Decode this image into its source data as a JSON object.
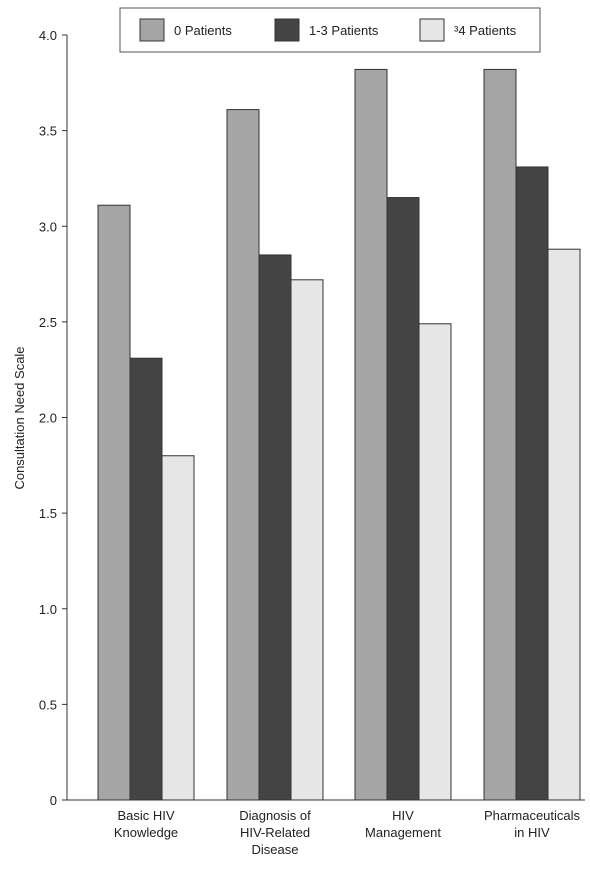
{
  "chart_data": {
    "type": "bar",
    "title": "",
    "xlabel": "",
    "ylabel": "Consultation Need Scale",
    "ylim": [
      0,
      4.0
    ],
    "yticks": [
      "0",
      "0.5",
      "1.0",
      "1.5",
      "2.0",
      "2.5",
      "3.0",
      "3.5",
      "4.0"
    ],
    "ytick_values": [
      0,
      0.5,
      1.0,
      1.5,
      2.0,
      2.5,
      3.0,
      3.5,
      4.0
    ],
    "categories": [
      [
        "Basic HIV",
        "Knowledge"
      ],
      [
        "Diagnosis of",
        "HIV-Related",
        "Disease"
      ],
      [
        "HIV",
        "Management"
      ],
      [
        "Pharmaceuticals",
        "in HIV"
      ]
    ],
    "series": [
      {
        "name": "0 Patients",
        "color": "#a6a6a6",
        "values": [
          3.11,
          3.61,
          3.82,
          3.82
        ]
      },
      {
        "name": "1-3 Patients",
        "color": "#444444",
        "values": [
          2.31,
          2.85,
          3.15,
          3.31
        ]
      },
      {
        "name": "³4 Patients",
        "color": "#e6e6e6",
        "values": [
          1.8,
          2.72,
          2.49,
          2.88
        ]
      }
    ],
    "legend_position": "top",
    "grid": false
  }
}
